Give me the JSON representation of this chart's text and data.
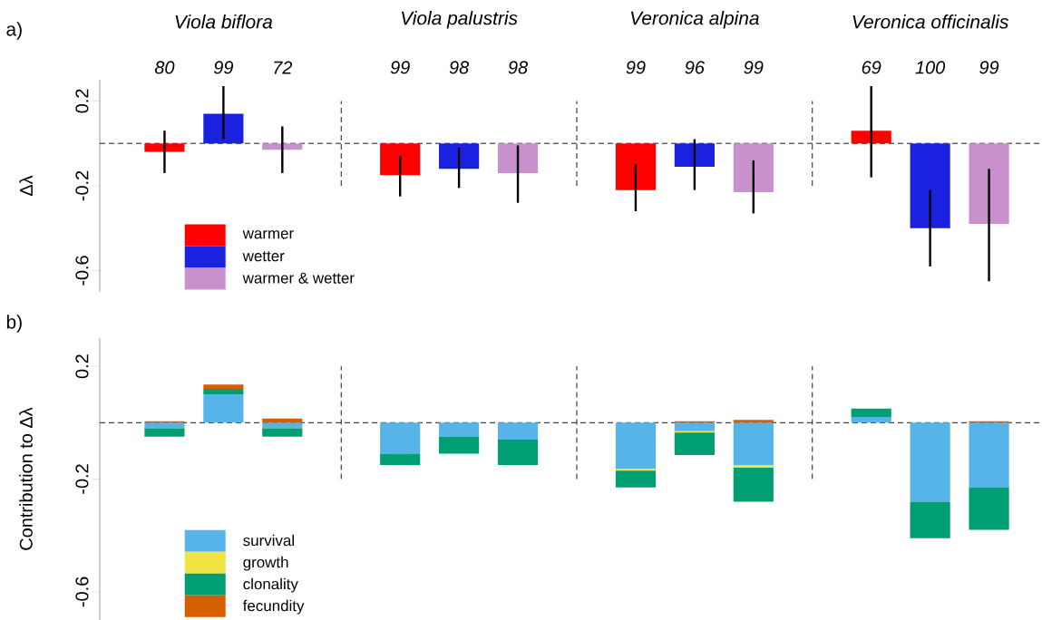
{
  "chart_data": [
    {
      "type": "bar",
      "title": "a)",
      "ylabel": "Δλ",
      "categories": [
        "80",
        "99",
        "72",
        null,
        "99",
        "98",
        "98",
        null,
        "99",
        "96",
        "99",
        null,
        "69",
        "100",
        "99"
      ],
      "annotations": [
        "Viola biflora",
        "Viola palustris",
        "Veronica alpina",
        "Veronica officinalis"
      ],
      "series": [
        {
          "name": "warmer",
          "color": "#ff0000",
          "values": [
            -0.04,
            null,
            null,
            null,
            -0.15,
            null,
            null,
            null,
            -0.22,
            null,
            null,
            null,
            0.06,
            null,
            null
          ],
          "errors": [
            [
              -0.14,
              0.06
            ],
            null,
            null,
            null,
            [
              -0.25,
              -0.06
            ],
            null,
            null,
            null,
            [
              -0.32,
              -0.1
            ],
            null,
            null,
            null,
            [
              -0.16,
              0.27
            ],
            null,
            null
          ]
        },
        {
          "name": "wetter",
          "color": "#1a22e0",
          "values": [
            null,
            0.14,
            null,
            null,
            null,
            -0.12,
            null,
            null,
            null,
            -0.11,
            null,
            null,
            null,
            -0.4,
            null
          ],
          "errors": [
            null,
            [
              0.02,
              0.27
            ],
            null,
            null,
            null,
            [
              -0.21,
              -0.02
            ],
            null,
            null,
            null,
            [
              -0.22,
              0.02
            ],
            null,
            null,
            null,
            [
              -0.58,
              -0.22
            ],
            null
          ]
        },
        {
          "name": "warmer & wetter",
          "color": "#c890cc",
          "values": [
            null,
            null,
            -0.03,
            null,
            null,
            null,
            -0.14,
            null,
            null,
            null,
            -0.23,
            null,
            null,
            null,
            -0.38
          ],
          "errors": [
            null,
            null,
            [
              -0.14,
              0.08
            ],
            null,
            null,
            null,
            [
              -0.28,
              -0.01
            ],
            null,
            null,
            null,
            [
              -0.33,
              -0.08
            ],
            null,
            null,
            null,
            [
              -0.65,
              -0.12
            ]
          ]
        }
      ],
      "ylim": [
        -0.7,
        0.3
      ],
      "yticks": [
        -0.6,
        -0.2,
        0.2
      ],
      "ref_lines": [
        {
          "axis": "y",
          "value": 0,
          "line_style": "dashed"
        }
      ],
      "legend": "bottom left",
      "grid": false
    },
    {
      "type": "bar",
      "title": "b)",
      "ylabel": "Contribution to Δλ",
      "stacked": true,
      "categories": [
        null,
        null,
        null,
        null,
        null,
        null,
        null,
        null,
        null,
        null,
        null,
        null,
        null,
        null,
        null
      ],
      "series": [
        {
          "name": "survival",
          "color": "#56b4e9",
          "values": [
            -0.02,
            0.1,
            -0.02,
            null,
            -0.11,
            -0.05,
            -0.06,
            null,
            -0.165,
            -0.03,
            -0.15,
            null,
            0.02,
            -0.28,
            -0.23
          ]
        },
        {
          "name": "growth",
          "color": "#f0e442",
          "values": [
            null,
            null,
            null,
            null,
            null,
            null,
            null,
            null,
            -0.005,
            -0.005,
            -0.01,
            null,
            null,
            null,
            null
          ]
        },
        {
          "name": "clonality",
          "color": "#009e73",
          "values": [
            -0.03,
            0.02,
            -0.03,
            null,
            -0.04,
            -0.06,
            -0.09,
            null,
            -0.06,
            -0.08,
            -0.12,
            null,
            0.03,
            -0.13,
            -0.15
          ]
        },
        {
          "name": "fecundity",
          "color": "#d55e00",
          "values": [
            0.005,
            0.015,
            0.015,
            null,
            null,
            null,
            null,
            null,
            null,
            0.005,
            0.01,
            null,
            null,
            null,
            0.005
          ]
        }
      ],
      "ylim": [
        -0.7,
        0.3
      ],
      "yticks": [
        -0.6,
        -0.2,
        0.2
      ],
      "ref_lines": [
        {
          "axis": "y",
          "value": 0,
          "line_style": "dashed"
        }
      ],
      "legend": "bottom left",
      "grid": false
    }
  ]
}
